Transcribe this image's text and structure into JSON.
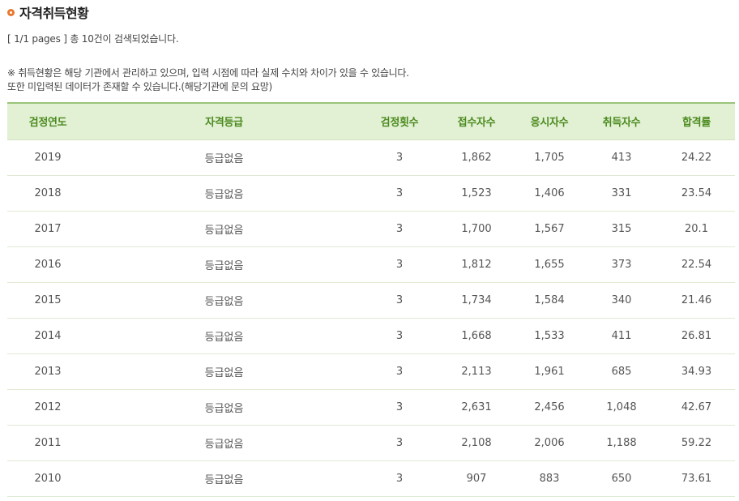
{
  "header": {
    "title": "자격취득현황",
    "page_info": "[ 1/1 pages ] 총 10건이 검색되었습니다."
  },
  "notice": {
    "line1": "※ 취득현황은 해당 기관에서 관리하고 있으며, 입력 시점에 따라 실제 수치와 차이가 있을 수 있습니다.",
    "line2": "또한 미입력된 데이터가 존재할 수 있습니다.(해당기관에 문의 요망)"
  },
  "colors": {
    "accent": "#e8772e",
    "header_bg": "#e2f0d4",
    "header_text": "#4b8a1e"
  },
  "table": {
    "columns": [
      "검정연도",
      "자격등급",
      "검정횟수",
      "접수자수",
      "응시자수",
      "취득자수",
      "합격률"
    ],
    "rows": [
      [
        "2019",
        "등급없음",
        "3",
        "1,862",
        "1,705",
        "413",
        "24.22"
      ],
      [
        "2018",
        "등급없음",
        "3",
        "1,523",
        "1,406",
        "331",
        "23.54"
      ],
      [
        "2017",
        "등급없음",
        "3",
        "1,700",
        "1,567",
        "315",
        "20.1"
      ],
      [
        "2016",
        "등급없음",
        "3",
        "1,812",
        "1,655",
        "373",
        "22.54"
      ],
      [
        "2015",
        "등급없음",
        "3",
        "1,734",
        "1,584",
        "340",
        "21.46"
      ],
      [
        "2014",
        "등급없음",
        "3",
        "1,668",
        "1,533",
        "411",
        "26.81"
      ],
      [
        "2013",
        "등급없음",
        "3",
        "2,113",
        "1,961",
        "685",
        "34.93"
      ],
      [
        "2012",
        "등급없음",
        "3",
        "2,631",
        "2,456",
        "1,048",
        "42.67"
      ],
      [
        "2011",
        "등급없음",
        "3",
        "2,108",
        "2,006",
        "1,188",
        "59.22"
      ],
      [
        "2010",
        "등급없음",
        "3",
        "907",
        "883",
        "650",
        "73.61"
      ]
    ]
  }
}
